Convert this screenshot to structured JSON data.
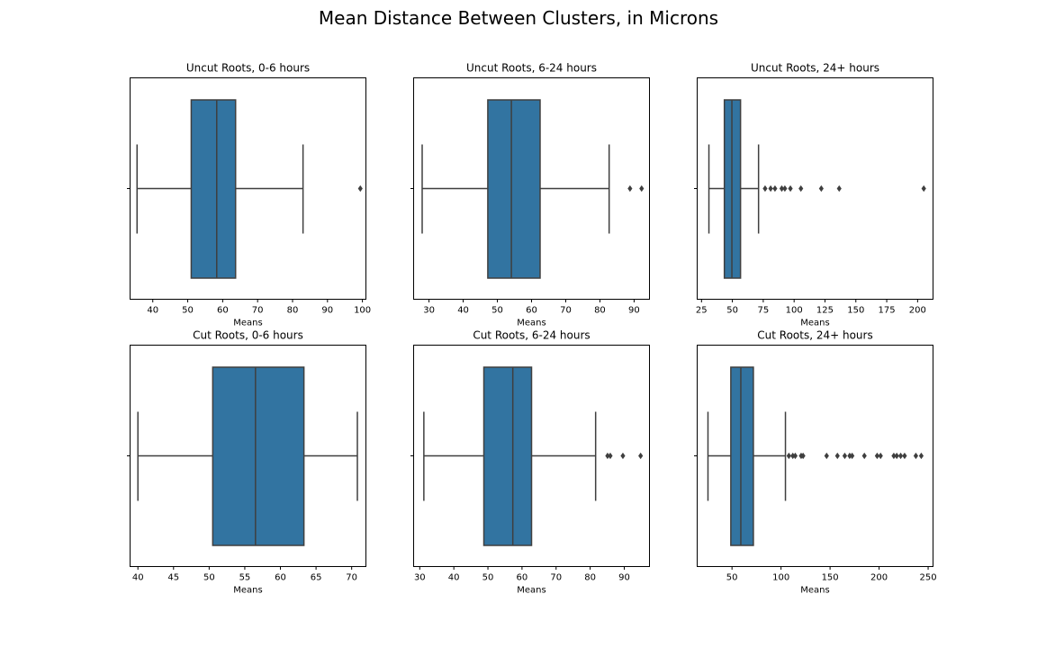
{
  "figure_title": "Mean Distance Between Clusters, in Microns",
  "colors": {
    "box_fill": "#3274a1",
    "line": "#3f3f3f",
    "axis": "#000000",
    "background": "#ffffff"
  },
  "chart_data": [
    {
      "type": "box",
      "title": "Uncut Roots, 0-6 hours",
      "xlabel": "Means",
      "xlim": [
        33.5,
        101
      ],
      "xticks": [
        40,
        50,
        60,
        70,
        80,
        90,
        100
      ],
      "whisker_low": 35.5,
      "q1": 51,
      "median": 58.3,
      "q3": 63.7,
      "whisker_high": 83,
      "outliers": [
        99.4
      ]
    },
    {
      "type": "box",
      "title": "Uncut Roots, 6-24 hours",
      "xlabel": "Means",
      "xlim": [
        25.5,
        94.5
      ],
      "xticks": [
        30,
        40,
        50,
        60,
        70,
        80,
        90
      ],
      "whisker_low": 28,
      "q1": 47.2,
      "median": 54.1,
      "q3": 62.5,
      "whisker_high": 82.7,
      "outliers": [
        88.8,
        92.2
      ]
    },
    {
      "type": "box",
      "title": "Uncut Roots, 24+ hours",
      "xlabel": "Means",
      "xlim": [
        21.5,
        212.5
      ],
      "xticks": [
        25,
        50,
        75,
        100,
        125,
        150,
        175,
        200
      ],
      "whisker_low": 31,
      "q1": 43.5,
      "median": 49.6,
      "q3": 56.6,
      "whisker_high": 71.2,
      "outliers": [
        76.5,
        81,
        84.5,
        90,
        92.5,
        97,
        105.5,
        122,
        136.5,
        205
      ]
    },
    {
      "type": "box",
      "title": "Cut Roots, 0-6 hours",
      "xlabel": "Means",
      "xlim": [
        38.9,
        72
      ],
      "xticks": [
        40,
        45,
        50,
        55,
        60,
        65,
        70
      ],
      "whisker_low": 40,
      "q1": 50.5,
      "median": 56.5,
      "q3": 63.3,
      "whisker_high": 70.8,
      "outliers": []
    },
    {
      "type": "box",
      "title": "Cut Roots, 6-24 hours",
      "xlabel": "Means",
      "xlim": [
        28.2,
        97.4
      ],
      "xticks": [
        30,
        40,
        50,
        60,
        70,
        80,
        90
      ],
      "whisker_low": 31.2,
      "q1": 48.8,
      "median": 57.3,
      "q3": 62.8,
      "whisker_high": 81.6,
      "outliers": [
        85.1,
        85.9,
        89.6,
        94.8
      ]
    },
    {
      "type": "box",
      "title": "Cut Roots, 24+ hours",
      "xlabel": "Means",
      "xlim": [
        14.5,
        255
      ],
      "xticks": [
        50,
        100,
        150,
        200,
        250
      ],
      "whisker_low": 25.5,
      "q1": 48.8,
      "median": 59,
      "q3": 71.8,
      "whisker_high": 104.5,
      "outliers": [
        108,
        112,
        114.5,
        120.5,
        122.5,
        146.5,
        157.5,
        165,
        170,
        172.5,
        185,
        198,
        201.5,
        215,
        218,
        222,
        226,
        237.5,
        243
      ]
    }
  ]
}
